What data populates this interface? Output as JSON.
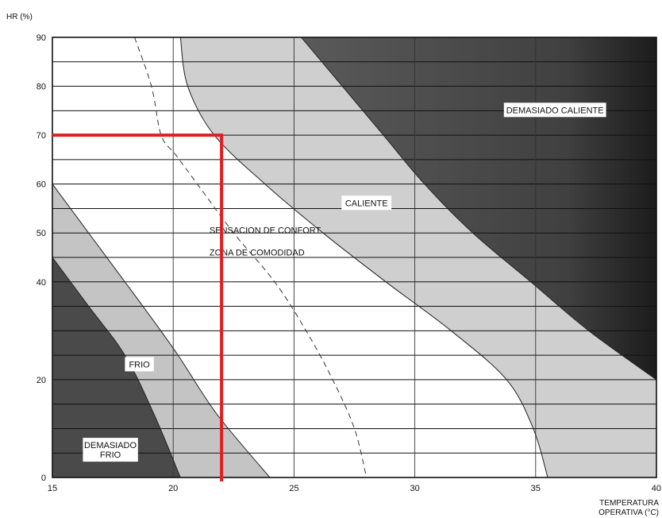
{
  "chart_data": {
    "type": "area",
    "ylabel": "HR (%)",
    "xlabel_lines": [
      "TEMPERATURA",
      "OPERATIVA (°C)"
    ],
    "xlim": [
      15,
      40
    ],
    "ylim": [
      0,
      90
    ],
    "x_ticks": [
      15,
      20,
      25,
      30,
      35,
      40
    ],
    "y_ticks": [
      0,
      20,
      30,
      40,
      50,
      60,
      70,
      80,
      90
    ],
    "y_tick_labels": [
      "0",
      "20",
      "",
      "40",
      "50",
      "60",
      "70",
      "80",
      "90"
    ],
    "grid": true,
    "boundaries": [
      {
        "id": "cold_extreme",
        "points": [
          [
            15,
            45
          ],
          [
            16.5,
            35
          ],
          [
            18,
            25
          ],
          [
            19.2,
            13
          ],
          [
            20.3,
            0
          ]
        ]
      },
      {
        "id": "cold_comfort",
        "points": [
          [
            15,
            60
          ],
          [
            16.8,
            48
          ],
          [
            18.6,
            36
          ],
          [
            20.2,
            25
          ],
          [
            21.8,
            13
          ],
          [
            24,
            0
          ]
        ]
      },
      {
        "id": "hot_comfort",
        "points": [
          [
            20.3,
            90
          ],
          [
            20.6,
            80
          ],
          [
            21.7,
            70
          ],
          [
            23.8,
            60
          ],
          [
            26.2,
            50
          ],
          [
            28.8,
            40
          ],
          [
            31.5,
            30
          ],
          [
            33.8,
            20
          ],
          [
            34.9,
            10
          ],
          [
            35.5,
            0
          ]
        ]
      },
      {
        "id": "hot_extreme",
        "points": [
          [
            25.3,
            90
          ],
          [
            27,
            80
          ],
          [
            28.7,
            70
          ],
          [
            30.4,
            60
          ],
          [
            32.4,
            50
          ],
          [
            34.8,
            40
          ],
          [
            37.2,
            30
          ],
          [
            40,
            20
          ]
        ]
      }
    ],
    "neutral_dashed_line": {
      "points": [
        [
          18.4,
          90
        ],
        [
          19.1,
          80
        ],
        [
          19.5,
          70
        ],
        [
          20.1,
          66
        ],
        [
          21,
          60
        ],
        [
          22.5,
          50
        ],
        [
          24.2,
          40
        ],
        [
          25.5,
          30
        ],
        [
          26.6,
          20
        ],
        [
          27.5,
          10
        ],
        [
          28,
          0
        ]
      ]
    },
    "zones": [
      {
        "id": "muy_frio",
        "lines": [
          "DEMASIADO",
          "FRIO"
        ],
        "at": [
          17.4,
          5.5
        ],
        "boxed": true,
        "color": "#4a4a4a"
      },
      {
        "id": "frio",
        "lines": [
          "FRIO"
        ],
        "at": [
          18.6,
          23
        ],
        "boxed": true,
        "color": "#c4c4c4"
      },
      {
        "id": "confort",
        "lines": [
          "SENSACION DE CONFORT",
          "ZONA DE COMODIDAD"
        ],
        "at": [
          21.5,
          47
        ],
        "boxed": false,
        "color": "#ffffff"
      },
      {
        "id": "caliente",
        "lines": [
          "CALIENTE"
        ],
        "at": [
          28,
          56
        ],
        "boxed": true,
        "color": "#cfcfcf"
      },
      {
        "id": "muy_caliente",
        "lines": [
          "DEMASIADO CALIENTE"
        ],
        "at": [
          35.8,
          75
        ],
        "boxed": true,
        "color": "#474747"
      }
    ],
    "marker": {
      "x": 22,
      "y": 70,
      "color": "#e02020"
    }
  }
}
